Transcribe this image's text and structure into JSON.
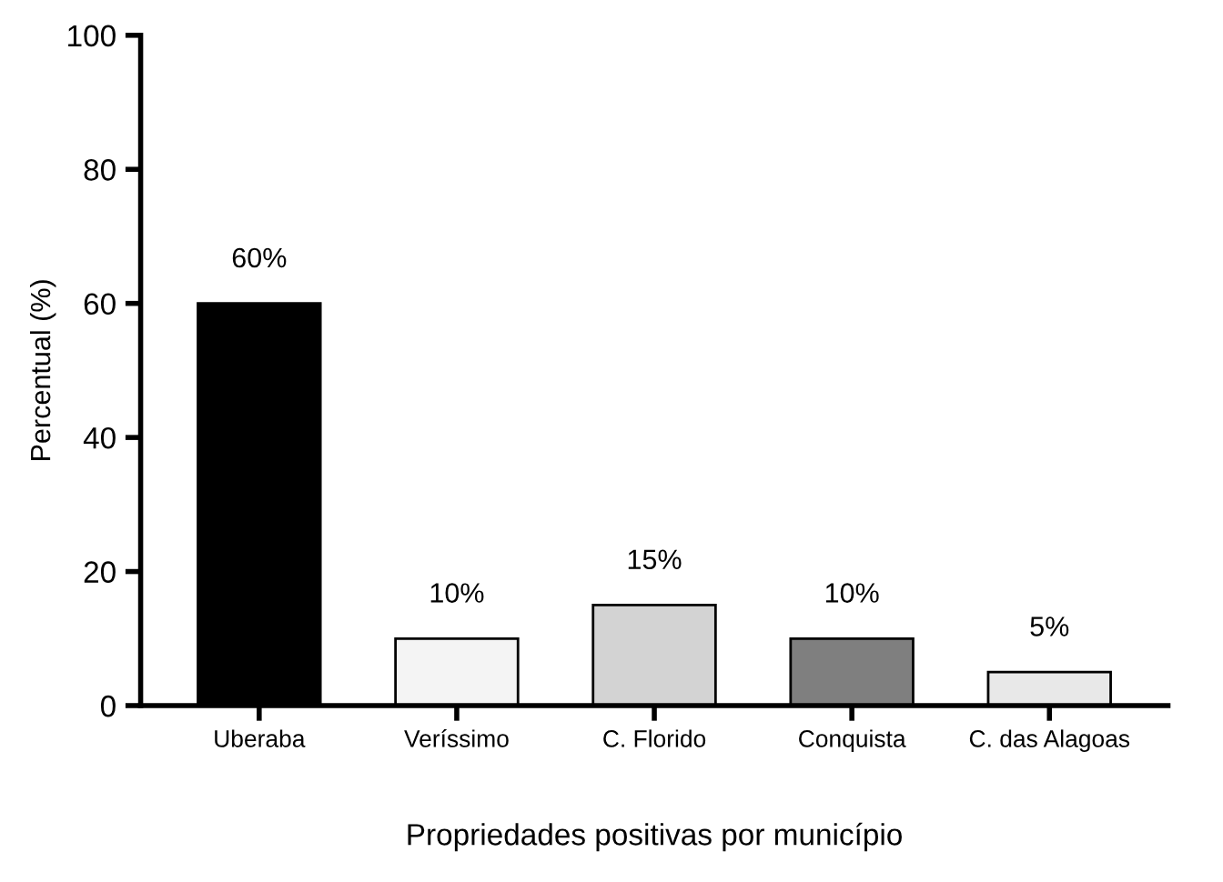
{
  "chart_data": {
    "type": "bar",
    "xlabel": "Propriedades positivas por município",
    "ylabel": "Percentual (%)",
    "categories": [
      "Uberaba",
      "Veríssimo",
      "C. Florido",
      "Conquista",
      "C. das Alagoas"
    ],
    "values": [
      60,
      10,
      15,
      10,
      5
    ],
    "value_labels": [
      "60%",
      "10%",
      "15%",
      "10%",
      "5%"
    ],
    "colors": [
      "#000000",
      "#f4f4f4",
      "#d3d3d3",
      "#7f7f7f",
      "#e8e8e8"
    ],
    "ylim": [
      0,
      100
    ],
    "yticks": [
      0,
      20,
      40,
      60,
      80,
      100
    ],
    "grid": false,
    "legend": false
  }
}
